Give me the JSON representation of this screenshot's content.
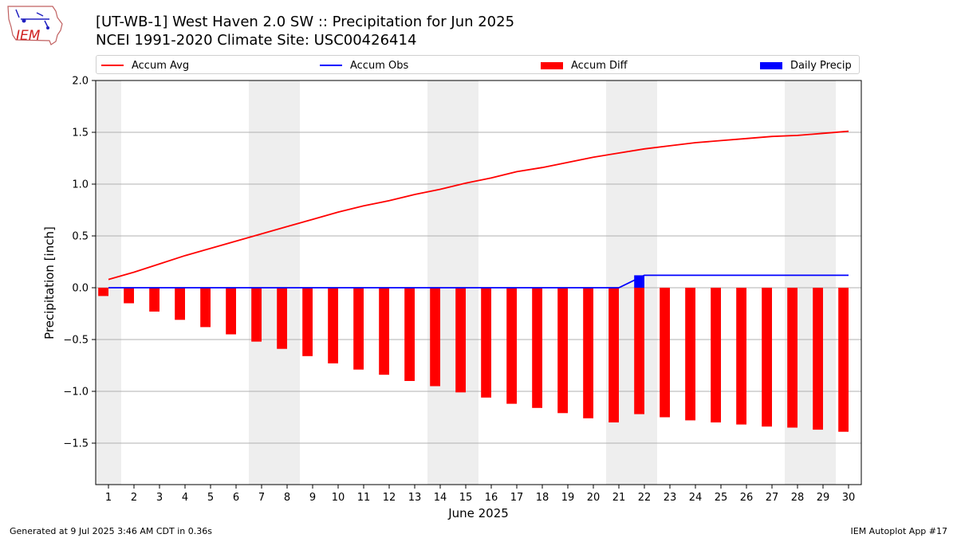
{
  "title_line1": "[UT-WB-1] West Haven 2.0 SW :: Precipitation for Jun 2025",
  "title_line2": "NCEI 1991-2020 Climate Site: USC00426414",
  "logo_text": "IEM",
  "footer_left": "Generated at 9 Jul 2025 3:46 AM CDT in 0.36s",
  "footer_right": "IEM Autoplot App #17",
  "colors": {
    "avg": "#ff0000",
    "obs": "#0000ff",
    "diff": "#ff0000",
    "daily": "#0000ff",
    "weekend": "#eeeeee",
    "grid": "#b0b0b0"
  },
  "chart_data": {
    "type": "bar",
    "xlabel": "June 2025",
    "ylabel": "Precipitation [inch]",
    "ylim": [
      -1.9,
      2.0
    ],
    "xlim": [
      0.5,
      30.5
    ],
    "yticks": [
      2.0,
      1.5,
      1.0,
      0.5,
      0.0,
      -0.5,
      -1.0,
      -1.5
    ],
    "ytick_labels": [
      "2.0",
      "1.5",
      "1.0",
      "0.5",
      "0.0",
      "−0.5",
      "−1.0",
      "−1.5"
    ],
    "grid": "horizontal",
    "legend_position": "top",
    "legend": [
      "Accum Avg",
      "Accum Obs",
      "Accum Diff",
      "Daily Precip"
    ],
    "x": [
      1,
      2,
      3,
      4,
      5,
      6,
      7,
      8,
      9,
      10,
      11,
      12,
      13,
      14,
      15,
      16,
      17,
      18,
      19,
      20,
      21,
      22,
      23,
      24,
      25,
      26,
      27,
      28,
      29,
      30
    ],
    "weekend_bands": [
      [
        0.5,
        1.5
      ],
      [
        6.5,
        8.5
      ],
      [
        13.5,
        15.5
      ],
      [
        20.5,
        22.5
      ],
      [
        27.5,
        29.5
      ]
    ],
    "series": [
      {
        "name": "Accum Avg",
        "kind": "line",
        "values": [
          0.08,
          0.15,
          0.23,
          0.31,
          0.38,
          0.45,
          0.52,
          0.59,
          0.66,
          0.73,
          0.79,
          0.84,
          0.9,
          0.95,
          1.01,
          1.06,
          1.12,
          1.16,
          1.21,
          1.26,
          1.3,
          1.34,
          1.37,
          1.4,
          1.42,
          1.44,
          1.46,
          1.47,
          1.49,
          1.51
        ]
      },
      {
        "name": "Accum Obs",
        "kind": "line",
        "values": [
          0,
          0,
          0,
          0,
          0,
          0,
          0,
          0,
          0,
          0,
          0,
          0,
          0,
          0,
          0,
          0,
          0,
          0,
          0,
          0,
          0,
          0.12,
          0.12,
          0.12,
          0.12,
          0.12,
          0.12,
          0.12,
          0.12,
          0.12
        ]
      },
      {
        "name": "Accum Diff",
        "kind": "bar",
        "values": [
          -0.08,
          -0.15,
          -0.23,
          -0.31,
          -0.38,
          -0.45,
          -0.52,
          -0.59,
          -0.66,
          -0.73,
          -0.79,
          -0.84,
          -0.9,
          -0.95,
          -1.01,
          -1.06,
          -1.12,
          -1.16,
          -1.21,
          -1.26,
          -1.3,
          -1.22,
          -1.25,
          -1.28,
          -1.3,
          -1.32,
          -1.34,
          -1.35,
          -1.37,
          -1.39
        ]
      },
      {
        "name": "Daily Precip",
        "kind": "bar",
        "values": [
          0,
          0,
          0,
          0,
          0,
          0,
          0,
          0,
          0,
          0,
          0,
          0,
          0,
          0,
          0,
          0,
          0,
          0,
          0,
          0,
          0,
          0.12,
          0,
          0,
          0,
          0,
          0,
          0,
          0,
          0
        ]
      }
    ]
  }
}
